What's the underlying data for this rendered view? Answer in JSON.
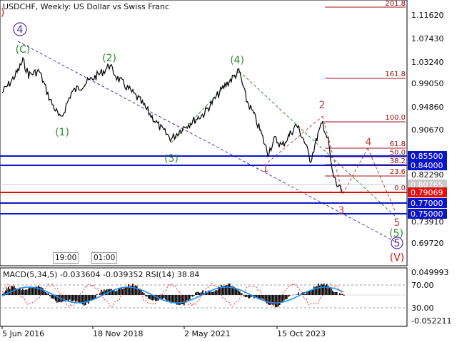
{
  "header": {
    "title": "USDCHF, Weekly:  US Dollar vs Swiss Franc"
  },
  "price_axis": {
    "ticks": [
      "1.11620",
      "1.07430",
      "1.03240",
      "0.99050",
      "0.94860",
      "0.90670",
      "0.82290",
      "0.73910",
      "0.69720"
    ],
    "badges": [
      {
        "label": "0.85500",
        "color": "#0a14c8"
      },
      {
        "label": "0.84000",
        "color": "#0a14c8"
      },
      {
        "label": "0.80765",
        "color": "#c8c8c8"
      },
      {
        "label": "0.79069",
        "color": "#e01010"
      },
      {
        "label": "0.77000",
        "color": "#0a14c8"
      },
      {
        "label": "0.75000",
        "color": "#0a14c8"
      }
    ]
  },
  "fib_levels": [
    "201.8",
    "161.8",
    "100.0",
    "61.8",
    "50.0",
    "38.2",
    "23.6",
    "0.0"
  ],
  "wave_labels": {
    "primary": [
      "4",
      "5"
    ],
    "intermediate": [
      "(C)",
      "(1)",
      "(2)",
      "(3)",
      "(4)",
      "(5)"
    ],
    "minor": [
      "1",
      "2",
      "3",
      "4",
      "5"
    ],
    "cycle": [
      "(V)"
    ],
    "edge_mark": ")"
  },
  "time_boxes": [
    "19:00",
    "01:00"
  ],
  "time_axis": [
    "5 Jun 2016",
    "18 Nov 2018",
    "2 May 2021",
    "15 Oct 2023"
  ],
  "indicator": {
    "title": "MACD(5,34,5) -0.033604 -0.039352 RSI(14) 38.84",
    "ticks": [
      "0.049993",
      "70.00",
      "30.00",
      "-0.052211"
    ]
  },
  "colors": {
    "price_line": "#000000",
    "horizontal_support": "#0a14c8",
    "current_price": "#e01010",
    "fib": "#a01010",
    "wave_green": "#2e8b2e",
    "wave_minor": "#c04040",
    "wave_primary": "#5a2ca0",
    "macd_signal": "#1e90ff"
  }
}
